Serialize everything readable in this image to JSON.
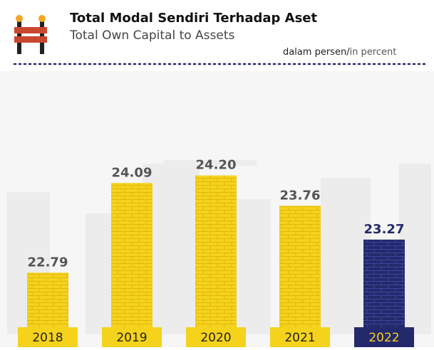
{
  "chart_data": {
    "type": "bar",
    "title": "Total Modal Sendiri Terhadap Aset",
    "subtitle": "Total Own Capital to Assets",
    "unit_label": "dalam persen/",
    "unit_label_en": "in percent",
    "categories": [
      "2018",
      "2019",
      "2020",
      "2021",
      "2022"
    ],
    "values": [
      22.79,
      24.09,
      24.2,
      23.76,
      23.27
    ],
    "value_labels": [
      "22.79",
      "24.09",
      "24.20",
      "23.76",
      "23.27"
    ],
    "colors": [
      "#f5d31c",
      "#f5d31c",
      "#f5d31c",
      "#f5d31c",
      "#24296b"
    ],
    "ylim": [
      22,
      24.5
    ]
  }
}
